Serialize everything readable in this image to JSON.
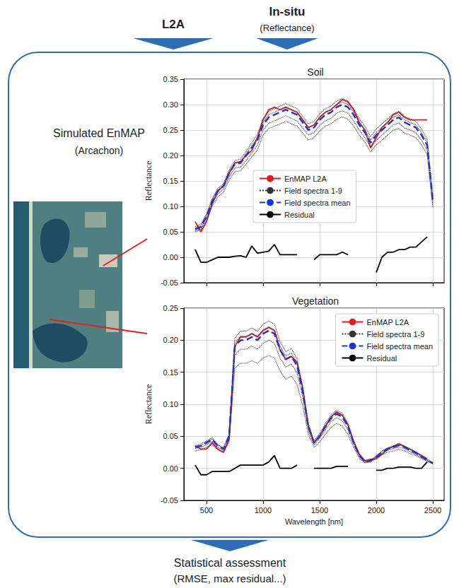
{
  "header": {
    "left_label": "L2A",
    "right_label": "In-situ",
    "right_sublabel": "(Reflectance)"
  },
  "image": {
    "title": "Simulated EnMAP",
    "subtitle": "(Arcachon)"
  },
  "footer": {
    "title": "Statistical assessment",
    "subtitle": "(RMSE, max residual...)"
  },
  "chart_data": [
    {
      "type": "line",
      "title": "Soil",
      "ylabel": "Reflectance",
      "x": [
        400,
        450,
        500,
        550,
        600,
        650,
        700,
        750,
        800,
        850,
        900,
        950,
        1000,
        1050,
        1100,
        1150,
        1200,
        1250,
        1300,
        1350,
        1400,
        1450,
        1500,
        1550,
        1600,
        1650,
        1700,
        1750,
        1800,
        1850,
        1900,
        1950,
        2000,
        2050,
        2100,
        2150,
        2200,
        2250,
        2300,
        2350,
        2400,
        2450,
        2500
      ],
      "series": [
        {
          "name": "EnMAP L2A",
          "color": "#e8171b",
          "line_style": "solid",
          "values": [
            0.07,
            0.05,
            0.07,
            0.105,
            0.13,
            0.14,
            0.165,
            0.185,
            0.188,
            0.2,
            0.21,
            0.235,
            0.27,
            0.29,
            0.295,
            0.29,
            0.295,
            0.29,
            0.285,
            0.27,
            0.255,
            0.26,
            0.275,
            0.285,
            0.29,
            0.3,
            0.31,
            0.305,
            0.29,
            0.265,
            0.25,
            0.215,
            0.235,
            0.255,
            0.265,
            0.28,
            0.285,
            0.275,
            0.27,
            0.27,
            0.27,
            0.27,
            null
          ]
        },
        {
          "name": "Field spectra 1-9",
          "color": "#333333",
          "line_style": "dotted",
          "values": [
            0.06,
            0.065,
            0.085,
            0.115,
            0.135,
            0.145,
            0.172,
            0.19,
            0.193,
            0.208,
            0.225,
            0.242,
            0.272,
            0.287,
            0.292,
            0.297,
            0.302,
            0.297,
            0.292,
            0.277,
            0.262,
            0.267,
            0.282,
            0.292,
            0.297,
            0.307,
            0.312,
            0.307,
            0.292,
            0.272,
            0.257,
            0.237,
            0.252,
            0.262,
            0.272,
            0.282,
            0.287,
            0.277,
            0.272,
            0.267,
            0.252,
            0.232,
            0.12
          ]
        },
        {
          "name": "Field spectra 1-9",
          "color": "#333333",
          "line_style": "dotted",
          "values": [
            0.057,
            0.062,
            0.082,
            0.112,
            0.132,
            0.142,
            0.168,
            0.186,
            0.188,
            0.203,
            0.219,
            0.235,
            0.265,
            0.28,
            0.285,
            0.29,
            0.295,
            0.29,
            0.285,
            0.27,
            0.255,
            0.26,
            0.275,
            0.285,
            0.29,
            0.3,
            0.305,
            0.3,
            0.285,
            0.265,
            0.25,
            0.23,
            0.245,
            0.255,
            0.265,
            0.275,
            0.28,
            0.27,
            0.265,
            0.26,
            0.245,
            0.225,
            0.112
          ]
        },
        {
          "name": "Field spectra 1-9",
          "color": "#333333",
          "line_style": "dotted",
          "values": [
            0.052,
            0.057,
            0.076,
            0.105,
            0.124,
            0.134,
            0.158,
            0.175,
            0.177,
            0.19,
            0.205,
            0.22,
            0.25,
            0.263,
            0.268,
            0.273,
            0.278,
            0.273,
            0.268,
            0.254,
            0.24,
            0.245,
            0.259,
            0.268,
            0.273,
            0.283,
            0.288,
            0.283,
            0.268,
            0.25,
            0.235,
            0.216,
            0.23,
            0.24,
            0.25,
            0.26,
            0.264,
            0.254,
            0.25,
            0.245,
            0.23,
            0.211,
            0.104
          ]
        },
        {
          "name": "Field spectra 1-9",
          "color": "#333333",
          "line_style": "dotted",
          "values": [
            0.05,
            0.054,
            0.073,
            0.1,
            0.118,
            0.128,
            0.152,
            0.168,
            0.17,
            0.183,
            0.197,
            0.211,
            0.24,
            0.253,
            0.258,
            0.262,
            0.267,
            0.262,
            0.258,
            0.244,
            0.23,
            0.235,
            0.248,
            0.258,
            0.262,
            0.271,
            0.276,
            0.271,
            0.258,
            0.24,
            0.226,
            0.207,
            0.221,
            0.23,
            0.24,
            0.25,
            0.253,
            0.244,
            0.24,
            0.235,
            0.221,
            0.202,
            0.098
          ]
        },
        {
          "name": "Field spectra mean",
          "color": "#1f2fe0",
          "line_style": "dashed",
          "values": [
            0.055,
            0.06,
            0.08,
            0.11,
            0.13,
            0.14,
            0.165,
            0.183,
            0.185,
            0.2,
            0.215,
            0.23,
            0.26,
            0.275,
            0.28,
            0.285,
            0.29,
            0.285,
            0.28,
            0.265,
            0.25,
            0.255,
            0.27,
            0.28,
            0.285,
            0.295,
            0.3,
            0.295,
            0.28,
            0.26,
            0.245,
            0.225,
            0.24,
            0.25,
            0.26,
            0.27,
            0.275,
            0.265,
            0.26,
            0.255,
            0.24,
            0.22,
            0.11
          ]
        },
        {
          "name": "Residual",
          "color": "#000000",
          "line_style": "solid",
          "values": [
            0.015,
            -0.01,
            -0.01,
            -0.005,
            0,
            0,
            0,
            0.002,
            0.003,
            0,
            0.022,
            0.008,
            0.01,
            0.012,
            0.025,
            0.005,
            0.005,
            0.005,
            0.005,
            null,
            null,
            -0.005,
            0.005,
            0.005,
            0.005,
            0.005,
            0.01,
            0.005,
            null,
            null,
            null,
            null,
            -0.03,
            0,
            0.01,
            0.01,
            0.015,
            0.015,
            0.02,
            0.02,
            0.03,
            0.04,
            null
          ]
        }
      ],
      "xlim": [
        300,
        2600
      ],
      "xticks": [
        500,
        1000,
        1500,
        2000,
        2500
      ],
      "ylim": [
        -0.05,
        0.35
      ],
      "yticks": [
        -0.05,
        {
          "value": 0,
          "label": "0.00"
        },
        0.05,
        {
          "value": 0.1,
          "label": "0.10"
        },
        0.15,
        {
          "value": 0.2,
          "label": "0.20"
        },
        0.25,
        {
          "value": 0.3,
          "label": "0.30"
        },
        0.35
      ],
      "grid": true,
      "legend": "center",
      "tick_labels": "y"
    },
    {
      "type": "line",
      "title": "Vegetation",
      "xlabel": "Wavelength [nm]",
      "ylabel": "Reflectance",
      "x": [
        400,
        450,
        500,
        550,
        600,
        650,
        700,
        750,
        800,
        850,
        900,
        950,
        1000,
        1050,
        1100,
        1150,
        1200,
        1250,
        1300,
        1350,
        1400,
        1450,
        1500,
        1550,
        1600,
        1650,
        1700,
        1750,
        1800,
        1850,
        1900,
        1950,
        2000,
        2050,
        2100,
        2150,
        2200,
        2250,
        2300,
        2350,
        2400,
        2450,
        2500
      ],
      "series": [
        {
          "name": "EnMAP L2A",
          "color": "#e8171b",
          "line_style": "solid",
          "values": [
            0.035,
            0.03,
            0.03,
            0.04,
            0.03,
            0.025,
            0.045,
            0.19,
            0.205,
            0.205,
            0.21,
            0.205,
            0.215,
            0.22,
            0.215,
            0.185,
            0.17,
            0.175,
            0.165,
            0.125,
            0.065,
            0.04,
            0.05,
            0.065,
            0.08,
            0.088,
            0.083,
            0.068,
            0.042,
            0.022,
            0.012,
            0.014,
            0.015,
            0.022,
            0.03,
            0.034,
            0.038,
            0.034,
            0.03,
            0.025,
            0.02,
            0.015,
            null
          ]
        },
        {
          "name": "Field spectra 1-9",
          "color": "#333333",
          "line_style": "dotted",
          "values": [
            0.035,
            0.038,
            0.043,
            0.048,
            0.037,
            0.032,
            0.054,
            0.203,
            0.214,
            0.214,
            0.219,
            0.214,
            0.225,
            0.23,
            0.225,
            0.198,
            0.182,
            0.187,
            0.171,
            0.128,
            0.07,
            0.043,
            0.054,
            0.07,
            0.083,
            0.091,
            0.086,
            0.07,
            0.043,
            0.021,
            0.011,
            0.013,
            0.019,
            0.027,
            0.032,
            0.035,
            0.039,
            0.035,
            0.03,
            0.026,
            0.019,
            0.014,
            0.009
          ]
        },
        {
          "name": "Field spectra 1-9",
          "color": "#333333",
          "line_style": "dotted",
          "values": [
            0.034,
            0.036,
            0.041,
            0.046,
            0.036,
            0.031,
            0.052,
            0.196,
            0.206,
            0.206,
            0.211,
            0.206,
            0.216,
            0.221,
            0.216,
            0.191,
            0.175,
            0.18,
            0.165,
            0.124,
            0.067,
            0.041,
            0.052,
            0.067,
            0.08,
            0.088,
            0.082,
            0.067,
            0.041,
            0.021,
            0.01,
            0.012,
            0.019,
            0.026,
            0.031,
            0.034,
            0.037,
            0.034,
            0.029,
            0.025,
            0.019,
            0.013,
            0.008
          ]
        },
        {
          "name": "Field spectra 1-9",
          "color": "#333333",
          "line_style": "dotted",
          "values": [
            0.031,
            0.033,
            0.037,
            0.042,
            0.033,
            0.028,
            0.047,
            0.177,
            0.186,
            0.186,
            0.191,
            0.186,
            0.195,
            0.2,
            0.195,
            0.172,
            0.158,
            0.163,
            0.149,
            0.112,
            0.06,
            0.037,
            0.047,
            0.06,
            0.073,
            0.079,
            0.074,
            0.06,
            0.037,
            0.019,
            0.009,
            0.011,
            0.017,
            0.023,
            0.028,
            0.031,
            0.033,
            0.031,
            0.026,
            0.022,
            0.017,
            0.012,
            0.007
          ]
        },
        {
          "name": "Field spectra 1-9",
          "color": "#333333",
          "line_style": "dotted",
          "values": [
            0.027,
            0.029,
            0.033,
            0.037,
            0.029,
            0.025,
            0.041,
            0.156,
            0.164,
            0.164,
            0.168,
            0.164,
            0.172,
            0.176,
            0.172,
            0.152,
            0.139,
            0.144,
            0.131,
            0.098,
            0.053,
            0.033,
            0.041,
            0.053,
            0.064,
            0.07,
            0.066,
            0.053,
            0.033,
            0.016,
            0.008,
            0.01,
            0.015,
            0.021,
            0.025,
            0.027,
            0.03,
            0.027,
            0.023,
            0.02,
            0.015,
            0.011,
            0.007
          ]
        },
        {
          "name": "Field spectra mean",
          "color": "#1f2fe0",
          "line_style": "dashed",
          "values": [
            0.033,
            0.035,
            0.04,
            0.045,
            0.035,
            0.03,
            0.05,
            0.19,
            0.2,
            0.2,
            0.205,
            0.2,
            0.21,
            0.215,
            0.21,
            0.185,
            0.17,
            0.175,
            0.16,
            0.12,
            0.065,
            0.04,
            0.05,
            0.065,
            0.078,
            0.085,
            0.08,
            0.065,
            0.04,
            0.02,
            0.01,
            0.012,
            0.018,
            0.025,
            0.03,
            0.033,
            0.036,
            0.033,
            0.028,
            0.024,
            0.018,
            0.013,
            0.008
          ]
        },
        {
          "name": "Residual",
          "color": "#000000",
          "line_style": "solid",
          "values": [
            0.005,
            -0.01,
            -0.01,
            -0.005,
            -0.005,
            -0.005,
            -0.005,
            0,
            0.005,
            0.005,
            0.005,
            0.005,
            0.005,
            0.01,
            0.02,
            0,
            0,
            0,
            0.005,
            null,
            null,
            0,
            0,
            0,
            0,
            0.003,
            0.003,
            0.003,
            null,
            null,
            null,
            null,
            -0.003,
            -0.003,
            0,
            0,
            0.002,
            0.002,
            0.002,
            0,
            0,
            0.01,
            null
          ]
        }
      ],
      "xlim": [
        300,
        2600
      ],
      "xticks": [
        500,
        1000,
        1500,
        2000,
        2500
      ],
      "ylim": [
        -0.05,
        0.25
      ],
      "yticks": [
        -0.05,
        {
          "value": 0,
          "label": "0.00"
        },
        0.05,
        {
          "value": 0.1,
          "label": "0.10"
        },
        0.15,
        {
          "value": 0.2,
          "label": "0.20"
        },
        0.25
      ],
      "grid": true,
      "legend": "upper right"
    }
  ]
}
